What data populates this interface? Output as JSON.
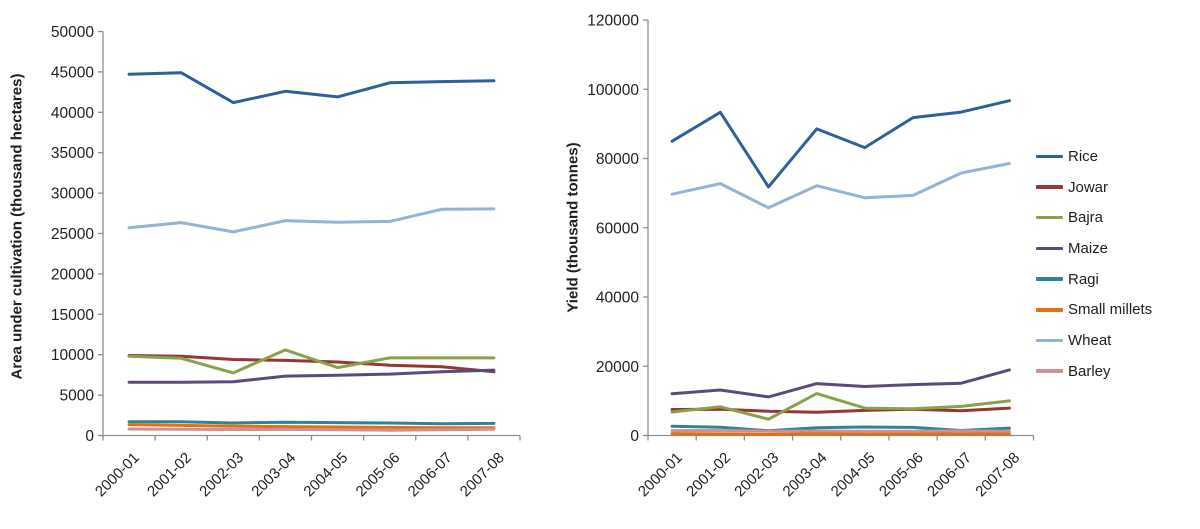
{
  "figure": {
    "background": "#ffffff",
    "axis_color": "#8e8e8e",
    "text_color": "#1f1f1f"
  },
  "legend": {
    "position": "right",
    "items": [
      {
        "label": "Rice",
        "color": "#30609A"
      },
      {
        "label": "Jowar",
        "color": "#953735"
      },
      {
        "label": "Bajra",
        "color": "#89A24A"
      },
      {
        "label": "Maize",
        "color": "#5C4A7D"
      },
      {
        "label": "Ragi",
        "color": "#2F8399"
      },
      {
        "label": "Small millets",
        "color": "#E2700E"
      },
      {
        "label": "Wheat",
        "color": "#95B3D7"
      },
      {
        "label": "Barley",
        "color": "#D09091"
      }
    ]
  },
  "chart_data": [
    {
      "type": "line",
      "title": "",
      "xlabel": "",
      "ylabel": "Area under cultivation (thousand hectares)",
      "grid": "off",
      "ylim": [
        0,
        50000
      ],
      "ytick_step": 5000,
      "categories": [
        "2000-01",
        "2001-02",
        "2002-03",
        "2003-04",
        "2004-05",
        "2005-06",
        "2006-07",
        "2007-08"
      ],
      "series": [
        {
          "name": "Rice",
          "color": "#30609A",
          "values": [
            44700,
            44900,
            41200,
            42600,
            41900,
            43650,
            43800,
            43900
          ]
        },
        {
          "name": "Jowar",
          "color": "#953735",
          "values": [
            9900,
            9800,
            9400,
            9300,
            9100,
            8700,
            8500,
            7900
          ]
        },
        {
          "name": "Bajra",
          "color": "#89A24A",
          "values": [
            9800,
            9550,
            7750,
            10600,
            8400,
            9600,
            9600,
            9600
          ]
        },
        {
          "name": "Maize",
          "color": "#5C4A7D",
          "values": [
            6600,
            6600,
            6650,
            7350,
            7450,
            7600,
            7900,
            8100
          ]
        },
        {
          "name": "Ragi",
          "color": "#2F8399",
          "values": [
            1700,
            1700,
            1550,
            1650,
            1600,
            1550,
            1450,
            1500
          ]
        },
        {
          "name": "Small millets",
          "color": "#E2700E",
          "values": [
            1350,
            1250,
            1150,
            1100,
            1050,
            1000,
            950,
            950
          ]
        },
        {
          "name": "Wheat",
          "color": "#95B3D7",
          "values": [
            25700,
            26350,
            25200,
            26600,
            26400,
            26500,
            28000,
            28050
          ]
        },
        {
          "name": "Barley",
          "color": "#D09091",
          "values": [
            810,
            780,
            740,
            760,
            710,
            660,
            700,
            780
          ]
        }
      ]
    },
    {
      "type": "line",
      "title": "",
      "xlabel": "",
      "ylabel": "Yield (thousand tonnes)",
      "grid": "off",
      "ylim": [
        0,
        120000
      ],
      "ytick_step": 20000,
      "categories": [
        "2000-01",
        "2001-02",
        "2002-03",
        "2003-04",
        "2004-05",
        "2005-06",
        "2006-07",
        "2007-08"
      ],
      "series": [
        {
          "name": "Rice",
          "color": "#30609A",
          "values": [
            85000,
            93350,
            71800,
            88550,
            83150,
            91800,
            93400,
            96700
          ]
        },
        {
          "name": "Jowar",
          "color": "#953735",
          "values": [
            7500,
            7600,
            7000,
            6700,
            7250,
            7600,
            7150,
            7900
          ]
        },
        {
          "name": "Bajra",
          "color": "#89A24A",
          "values": [
            6800,
            8300,
            4700,
            12100,
            7900,
            7700,
            8400,
            10000
          ]
        },
        {
          "name": "Maize",
          "color": "#5C4A7D",
          "values": [
            12050,
            13150,
            11150,
            15000,
            14150,
            14700,
            15100,
            18950
          ]
        },
        {
          "name": "Ragi",
          "color": "#2F8399",
          "values": [
            2700,
            2400,
            1350,
            2250,
            2450,
            2350,
            1450,
            2150
          ]
        },
        {
          "name": "Small millets",
          "color": "#E2700E",
          "values": [
            540,
            470,
            330,
            490,
            410,
            470,
            440,
            440
          ]
        },
        {
          "name": "Wheat",
          "color": "#95B3D7",
          "values": [
            69700,
            72750,
            65750,
            72150,
            68650,
            69350,
            75800,
            78550
          ]
        },
        {
          "name": "Barley",
          "color": "#D09091",
          "values": [
            1420,
            1430,
            1250,
            1300,
            1210,
            1220,
            1330,
            1200
          ]
        }
      ]
    }
  ]
}
